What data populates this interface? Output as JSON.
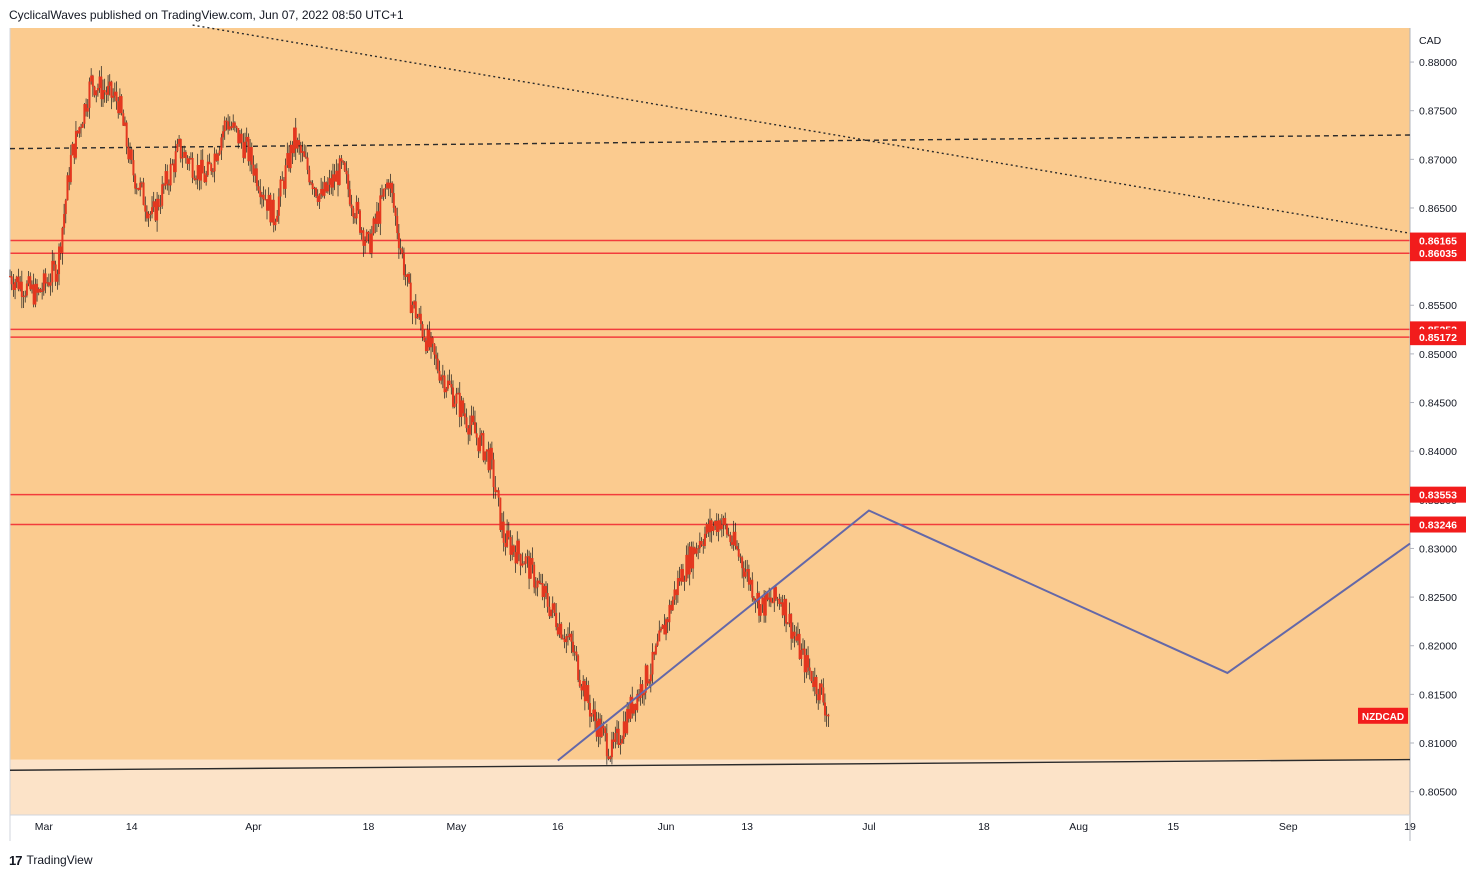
{
  "header": {
    "publish_info": "CyclicalWaves published on TradingView.com, Jun 07, 2022 08:50 UTC+1"
  },
  "footer": {
    "logo_mark": "17",
    "logo_text": "TradingView"
  },
  "colors": {
    "plot_background": "#fbcb8f",
    "below_support_fill": "#fce3c8",
    "level_line": "#f23c3c",
    "level_label_bg": "#f21c1c",
    "candle_color": "#e3371f",
    "wick_color": "#1a1a1a",
    "zigzag": "#6468a8",
    "trendline": "#2b2b2b"
  },
  "chart_data": {
    "type": "candlestick",
    "symbol": "NZDCAD",
    "currency_label": "CAD",
    "y_range": [
      0.8026,
      0.8835
    ],
    "y_ticks": [
      "0.80500",
      "0.81000",
      "0.81500",
      "0.82000",
      "0.82500",
      "0.83000",
      "0.83500",
      "0.84000",
      "0.84500",
      "0.85000",
      "0.85500",
      "0.86500",
      "0.87000",
      "0.87500",
      "0.88000"
    ],
    "x_ticks": [
      "Mar",
      "14",
      "Apr",
      "18",
      "May",
      "16",
      "Jun",
      "13",
      "Jul",
      "18",
      "Aug",
      "15",
      "Sep",
      "19"
    ],
    "x_tick_dates": [
      "2022-03-01",
      "2022-03-14",
      "2022-04-01",
      "2022-04-18",
      "2022-05-01",
      "2022-05-16",
      "2022-06-01",
      "2022-06-13",
      "2022-07-01",
      "2022-07-18",
      "2022-08-01",
      "2022-08-15",
      "2022-09-01",
      "2022-09-19"
    ],
    "x_range": [
      "2022-02-24",
      "2022-09-19"
    ],
    "horizontal_levels": [
      "0.86165",
      "0.86035",
      "0.85252",
      "0.85172",
      "0.83553",
      "0.83246"
    ],
    "price_path": [
      {
        "date": "2022-02-24",
        "price": 0.858
      },
      {
        "date": "2022-02-28",
        "price": 0.856
      },
      {
        "date": "2022-03-03",
        "price": 0.859
      },
      {
        "date": "2022-03-05",
        "price": 0.87
      },
      {
        "date": "2022-03-08",
        "price": 0.878
      },
      {
        "date": "2022-03-12",
        "price": 0.876
      },
      {
        "date": "2022-03-14",
        "price": 0.869
      },
      {
        "date": "2022-03-17",
        "price": 0.864
      },
      {
        "date": "2022-03-21",
        "price": 0.871
      },
      {
        "date": "2022-03-25",
        "price": 0.868
      },
      {
        "date": "2022-03-28",
        "price": 0.874
      },
      {
        "date": "2022-03-31",
        "price": 0.871
      },
      {
        "date": "2022-04-04",
        "price": 0.864
      },
      {
        "date": "2022-04-07",
        "price": 0.872
      },
      {
        "date": "2022-04-11",
        "price": 0.866
      },
      {
        "date": "2022-04-14",
        "price": 0.869
      },
      {
        "date": "2022-04-18",
        "price": 0.861
      },
      {
        "date": "2022-04-21",
        "price": 0.868
      },
      {
        "date": "2022-04-24",
        "price": 0.856
      },
      {
        "date": "2022-04-28",
        "price": 0.849
      },
      {
        "date": "2022-05-02",
        "price": 0.844
      },
      {
        "date": "2022-05-06",
        "price": 0.839
      },
      {
        "date": "2022-05-08",
        "price": 0.831
      },
      {
        "date": "2022-05-11",
        "price": 0.829
      },
      {
        "date": "2022-05-14",
        "price": 0.825
      },
      {
        "date": "2022-05-18",
        "price": 0.82
      },
      {
        "date": "2022-05-21",
        "price": 0.813
      },
      {
        "date": "2022-05-24",
        "price": 0.809
      },
      {
        "date": "2022-05-27",
        "price": 0.814
      },
      {
        "date": "2022-05-30",
        "price": 0.818
      },
      {
        "date": "2022-06-03",
        "price": 0.827
      },
      {
        "date": "2022-06-06",
        "price": 0.831
      },
      {
        "date": "2022-06-09",
        "price": 0.833
      },
      {
        "date": "2022-06-12",
        "price": 0.829
      },
      {
        "date": "2022-06-15",
        "price": 0.824
      },
      {
        "date": "2022-06-18",
        "price": 0.825
      },
      {
        "date": "2022-06-21",
        "price": 0.819
      },
      {
        "date": "2022-06-24",
        "price": 0.815
      },
      {
        "date": "2022-06-25",
        "price": 0.8128
      }
    ],
    "projection_zigzag": [
      {
        "date": "2022-05-16",
        "price": 0.8082
      },
      {
        "date": "2022-07-01",
        "price": 0.8339
      },
      {
        "date": "2022-08-23",
        "price": 0.8172
      },
      {
        "date": "2022-09-19",
        "price": 0.8305
      }
    ],
    "dotted_trendline": [
      {
        "date": "2022-03-23",
        "price": 0.8838
      },
      {
        "date": "2022-09-19",
        "price": 0.8624
      }
    ],
    "dashed_trendline": [
      {
        "date": "2022-02-24",
        "price": 0.8711
      },
      {
        "date": "2022-09-19",
        "price": 0.8725
      }
    ],
    "support_line": [
      {
        "date": "2022-02-24",
        "price": 0.8072
      },
      {
        "date": "2022-09-19",
        "price": 0.8083
      }
    ]
  }
}
